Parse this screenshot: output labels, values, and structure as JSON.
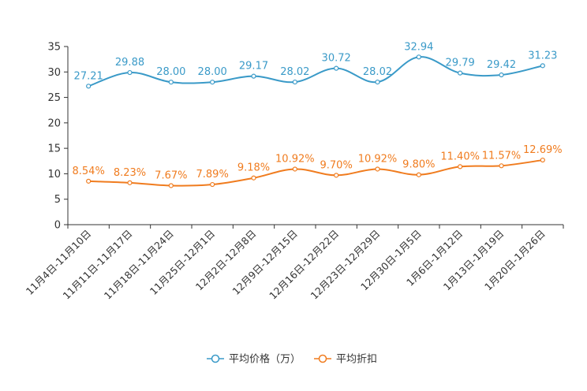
{
  "chart_data": {
    "type": "line",
    "title": "",
    "xlabel": "",
    "ylabel": "",
    "ylim": [
      0,
      35
    ],
    "yticks": [
      0,
      5,
      10,
      15,
      20,
      25,
      30,
      35
    ],
    "grid": false,
    "legend_position": "bottom",
    "categories": [
      "11月4日-11月10日",
      "11月11日-11月17日",
      "11月18日-11月24日",
      "11月25日-12月1日",
      "12月2日-12月8日",
      "12月9日-12月15日",
      "12月16日-12月22日",
      "12月23日-12月29日",
      "12月30日-1月5日",
      "1月6日-1月12日",
      "1月13日-1月19日",
      "1月20日-1月26日"
    ],
    "series": [
      {
        "name": "平均价格（万）",
        "color": "#3a9ac8",
        "values": [
          27.21,
          29.88,
          28.0,
          28.0,
          29.17,
          28.02,
          30.72,
          28.02,
          32.94,
          29.79,
          29.42,
          31.23
        ],
        "labels": [
          "27.21",
          "29.88",
          "28.00",
          "28.00",
          "29.17",
          "28.02",
          "30.72",
          "28.02",
          "32.94",
          "29.79",
          "29.42",
          "31.23"
        ]
      },
      {
        "name": "平均折扣",
        "color": "#f07c1f",
        "values": [
          8.54,
          8.23,
          7.67,
          7.89,
          9.18,
          10.92,
          9.7,
          10.92,
          9.8,
          11.4,
          11.57,
          12.69
        ],
        "labels": [
          "8.54%",
          "8.23%",
          "7.67%",
          "7.89%",
          "9.18%",
          "10.92%",
          "9.70%",
          "10.92%",
          "9.80%",
          "11.40%",
          "11.57%",
          "12.69%"
        ]
      }
    ]
  }
}
